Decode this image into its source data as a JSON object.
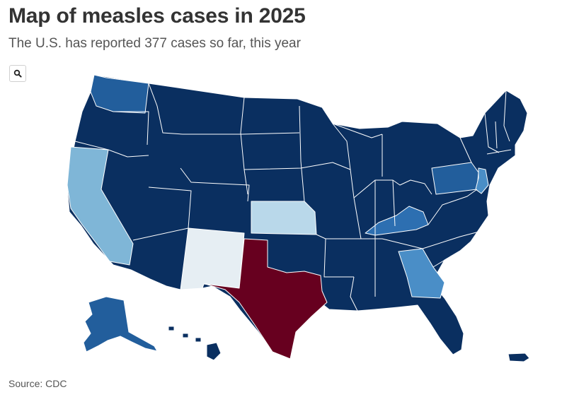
{
  "header": {
    "title": "Map of measles cases in 2025",
    "subtitle": "The U.S. has reported 377 cases so far, this year"
  },
  "toolbar": {
    "search_icon": "search-icon"
  },
  "footer": {
    "source": "Source: CDC"
  },
  "colors": {
    "zero_cases": "#0a2f60",
    "washington": "#225e9c",
    "alaska": "#225e9c",
    "pennsylvania": "#225e9c",
    "kentucky": "#2d6fb1",
    "georgia": "#4a8ec7",
    "new_jersey": "#4a8ec7",
    "california": "#7fb6d7",
    "kansas": "#b9d8ea",
    "new_mexico": "#e6eef3",
    "texas": "#67001f",
    "border": "#ffffff"
  }
}
